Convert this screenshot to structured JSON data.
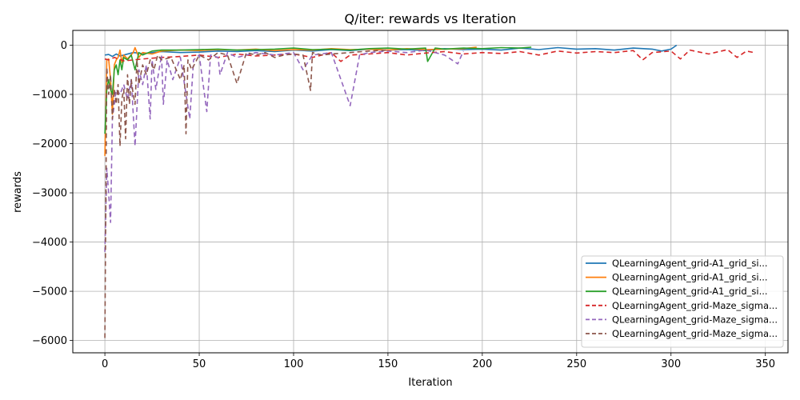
{
  "chart_data": {
    "type": "line",
    "title": "Q/iter: rewards vs Iteration",
    "xlabel": "Iteration",
    "ylabel": "rewards",
    "xlim": [
      -17,
      362
    ],
    "ylim": [
      -6250,
      300
    ],
    "xticks": [
      0,
      50,
      100,
      150,
      200,
      250,
      300,
      350
    ],
    "xtick_labels": [
      "0",
      "50",
      "100",
      "150",
      "200",
      "250",
      "300",
      "350"
    ],
    "yticks": [
      0,
      -1000,
      -2000,
      -3000,
      -4000,
      -5000,
      -6000
    ],
    "ytick_labels": [
      "0",
      "−1000",
      "−2000",
      "−3000",
      "−4000",
      "−5000",
      "−6000"
    ],
    "grid": true,
    "legend_position": "lower-right",
    "series": [
      {
        "name": "QLearningAgent_grid-A1_grid_si...",
        "color": "#1f77b4",
        "dash": "solid",
        "x": [
          0,
          2,
          4,
          6,
          8,
          10,
          15,
          20,
          30,
          40,
          50,
          60,
          70,
          80,
          90,
          100,
          110,
          120,
          130,
          140,
          150,
          160,
          170,
          180,
          190,
          200,
          210,
          220,
          230,
          240,
          250,
          260,
          270,
          280,
          290,
          295,
          300,
          303
        ],
        "y": [
          -200,
          -190,
          -230,
          -180,
          -220,
          -200,
          -150,
          -170,
          -130,
          -150,
          -140,
          -120,
          -130,
          -110,
          -130,
          -100,
          -120,
          -90,
          -110,
          -80,
          -100,
          -90,
          -110,
          -70,
          -90,
          -80,
          -100,
          -60,
          -90,
          -50,
          -80,
          -70,
          -100,
          -60,
          -80,
          -120,
          -80,
          0
        ]
      },
      {
        "name": "QLearningAgent_grid-A1_grid_si...",
        "color": "#ff7f0e",
        "dash": "solid",
        "x": [
          0,
          1,
          2,
          3,
          4,
          5,
          6,
          7,
          8,
          9,
          10,
          12,
          15,
          16,
          18,
          20,
          25,
          30,
          40,
          50,
          60,
          70,
          80,
          90,
          100,
          110,
          120,
          130,
          140,
          150,
          160,
          170,
          180,
          190,
          197
        ],
        "y": [
          -2250,
          -300,
          -280,
          -700,
          -1400,
          -400,
          -300,
          -250,
          -100,
          -350,
          -200,
          -280,
          -150,
          -50,
          -250,
          -150,
          -180,
          -120,
          -100,
          -110,
          -90,
          -100,
          -80,
          -110,
          -90,
          -100,
          -70,
          -90,
          -80,
          -100,
          -70,
          -90,
          -80,
          -70,
          -40
        ]
      },
      {
        "name": "QLearningAgent_grid-A1_grid_si...",
        "color": "#2ca02c",
        "dash": "solid",
        "x": [
          0,
          1,
          2,
          3,
          4,
          5,
          6,
          7,
          8,
          9,
          10,
          12,
          14,
          16,
          18,
          20,
          25,
          30,
          40,
          50,
          60,
          70,
          80,
          90,
          100,
          110,
          120,
          130,
          140,
          150,
          160,
          170,
          171,
          175,
          180,
          190,
          200,
          210,
          220,
          226
        ],
        "y": [
          -1800,
          -900,
          -700,
          -900,
          -1000,
          -500,
          -400,
          -600,
          -300,
          -500,
          -250,
          -300,
          -200,
          -500,
          -150,
          -200,
          -120,
          -100,
          -100,
          -90,
          -80,
          -100,
          -90,
          -80,
          -60,
          -90,
          -80,
          -100,
          -70,
          -60,
          -80,
          -60,
          -330,
          -60,
          -80,
          -60,
          -70,
          -50,
          -60,
          -40
        ]
      },
      {
        "name": "QLearningAgent_grid-Maze_sigma...",
        "color": "#d62728",
        "dash": "6,4",
        "x": [
          0,
          2,
          5,
          10,
          20,
          30,
          40,
          50,
          60,
          70,
          80,
          90,
          100,
          110,
          120,
          125,
          130,
          140,
          150,
          160,
          170,
          180,
          190,
          200,
          210,
          220,
          230,
          240,
          250,
          260,
          270,
          280,
          285,
          290,
          300,
          305,
          310,
          320,
          330,
          335,
          340,
          344
        ],
        "y": [
          -280,
          -300,
          -250,
          -320,
          -280,
          -250,
          -230,
          -200,
          -250,
          -180,
          -220,
          -200,
          -180,
          -250,
          -150,
          -330,
          -200,
          -180,
          -150,
          -200,
          -160,
          -130,
          -180,
          -150,
          -170,
          -130,
          -200,
          -120,
          -160,
          -130,
          -150,
          -110,
          -300,
          -150,
          -120,
          -280,
          -100,
          -180,
          -90,
          -250,
          -120,
          -150
        ]
      },
      {
        "name": "QLearningAgent_grid-Maze_sigma...",
        "color": "#9467bd",
        "dash": "6,4",
        "x": [
          0,
          1,
          2,
          3,
          4,
          5,
          6,
          8,
          10,
          12,
          14,
          16,
          18,
          20,
          22,
          24,
          25,
          27,
          30,
          31,
          33,
          36,
          40,
          45,
          47,
          50,
          54,
          56,
          60,
          61,
          65,
          70,
          75,
          80,
          90,
          100,
          105,
          110,
          120,
          130,
          135,
          140,
          150,
          160,
          170,
          180,
          187,
          190
        ],
        "y": [
          -4200,
          -2500,
          -3000,
          -3600,
          -1500,
          -1200,
          -900,
          -1000,
          -800,
          -1100,
          -700,
          -2050,
          -500,
          -800,
          -400,
          -1500,
          -300,
          -900,
          -200,
          -1200,
          -300,
          -700,
          -250,
          -1500,
          -300,
          -200,
          -1350,
          -200,
          -250,
          -600,
          -150,
          -250,
          -200,
          -150,
          -200,
          -150,
          -500,
          -200,
          -150,
          -1230,
          -200,
          -150,
          -120,
          -150,
          -100,
          -200,
          -380,
          -120
        ]
      },
      {
        "name": "QLearningAgent_grid-Maze_sigma...",
        "color": "#8c564b",
        "dash": "6,4",
        "x": [
          0,
          1,
          2,
          3,
          4,
          5,
          6,
          7,
          8,
          9,
          10,
          11,
          12,
          13,
          14,
          15,
          16,
          17,
          18,
          20,
          22,
          24,
          26,
          28,
          30,
          35,
          40,
          42,
          43,
          44,
          46,
          50,
          55,
          60,
          65,
          70,
          75,
          80,
          85,
          90,
          95,
          100,
          105,
          109,
          110,
          115,
          120,
          130,
          140,
          150
        ],
        "y": [
          -5950,
          -450,
          -1000,
          -600,
          -1500,
          -900,
          -1200,
          -800,
          -2050,
          -1100,
          -900,
          -1900,
          -600,
          -1200,
          -700,
          -1000,
          -1200,
          -300,
          -800,
          -400,
          -600,
          -300,
          -500,
          -200,
          -300,
          -250,
          -700,
          -400,
          -1800,
          -300,
          -500,
          -200,
          -300,
          -150,
          -200,
          -780,
          -150,
          -200,
          -150,
          -250,
          -200,
          -180,
          -200,
          -920,
          -150,
          -200,
          -180,
          -150,
          -120,
          -100
        ]
      }
    ]
  }
}
